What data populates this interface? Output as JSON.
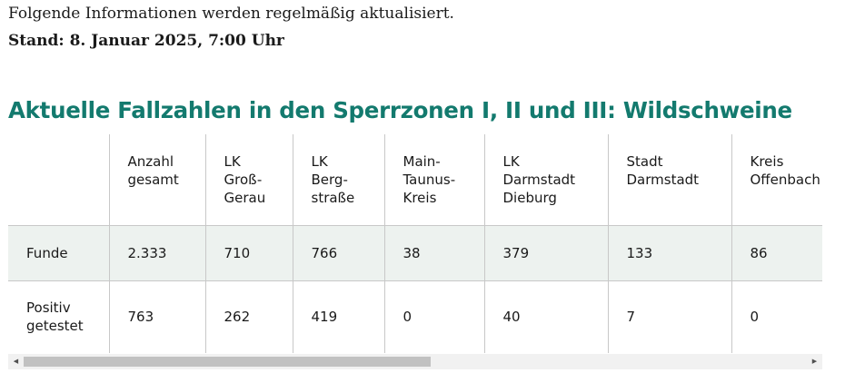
{
  "intro": {
    "text": "Folgende Informationen werden regelmäßig aktualisiert.",
    "stand": "Stand: 8. Januar 2025, 7:00 Uhr"
  },
  "section": {
    "title": "Aktuelle Fallzahlen in den Sperrzonen I, II und III: Wildschweine"
  },
  "table": {
    "headers": [
      "",
      "Anzahl gesamt",
      "LK Groß-Gerau",
      "LK Berg-straße",
      "Main-Taunus-Kreis",
      "LK Darmstadt Dieburg",
      "Stadt Darmstadt",
      "Kreis Offenbach"
    ],
    "header_lines": [
      [
        ""
      ],
      [
        "Anzahl",
        "gesamt"
      ],
      [
        "LK",
        "Groß-",
        "Gerau"
      ],
      [
        "LK",
        "Berg-",
        "straße"
      ],
      [
        "Main-",
        "Taunus-",
        "Kreis"
      ],
      [
        "LK",
        "Darmstadt",
        "Dieburg"
      ],
      [
        "Stadt",
        "Darmstadt"
      ],
      [
        "Kreis",
        "Offenbach"
      ]
    ],
    "rows": [
      {
        "label_lines": [
          "Funde"
        ],
        "values": [
          "2.333",
          "710",
          "766",
          "38",
          "379",
          "133",
          "86"
        ]
      },
      {
        "label_lines": [
          "Positiv",
          "getestet"
        ],
        "values": [
          "763",
          "262",
          "419",
          "0",
          "40",
          "7",
          "0"
        ]
      }
    ]
  },
  "scrollbar": {
    "left_arrow": "◀",
    "right_arrow": "▶",
    "thumb_fraction": 0.52
  }
}
